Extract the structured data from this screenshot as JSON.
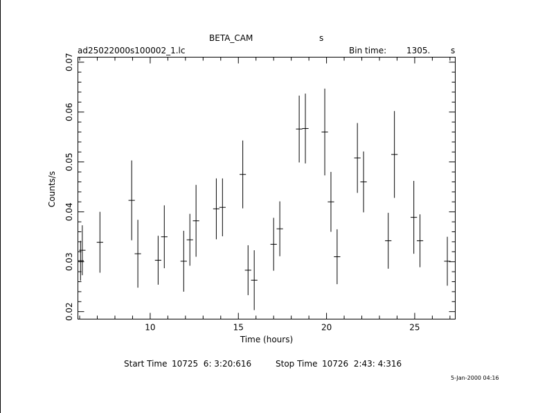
{
  "header": {
    "instrument": "BETA_CAM",
    "instrument_unit": "s",
    "filename": "ad25022000s100002_1.lc",
    "bin_time_label": "Bin time:",
    "bin_time_value": "1305.",
    "bin_time_unit": "s"
  },
  "footer": {
    "start_label": "Start Time",
    "start_value": "10725  6: 3:20:616",
    "stop_label": "Stop Time",
    "stop_value": "10726  2:43: 4:316",
    "date_stamp": "5-Jan-2000 04:16"
  },
  "chart_data": {
    "type": "scatter",
    "xlabel": "Time (hours)",
    "ylabel": "Counts/s",
    "xlim": [
      5.9,
      27.3
    ],
    "ylim": [
      0.0185,
      0.071
    ],
    "xticks": [
      10,
      15,
      20,
      25
    ],
    "yticks": [
      0.02,
      0.03,
      0.04,
      0.05,
      0.06,
      0.07
    ],
    "xtick_labels": [
      "10",
      "15",
      "20",
      "25"
    ],
    "ytick_labels": [
      "0.02",
      "0.03",
      "0.04",
      "0.05",
      "0.06",
      "0.07"
    ],
    "x_error": 0.181,
    "points": [
      {
        "x": 6.05,
        "y": 0.0302,
        "err": 0.004
      },
      {
        "x": 6.15,
        "y": 0.0323,
        "err": 0.005
      },
      {
        "x": 7.15,
        "y": 0.0339,
        "err": 0.0061
      },
      {
        "x": 8.95,
        "y": 0.0423,
        "err": 0.008
      },
      {
        "x": 9.3,
        "y": 0.0316,
        "err": 0.0068
      },
      {
        "x": 10.45,
        "y": 0.0303,
        "err": 0.0049
      },
      {
        "x": 10.8,
        "y": 0.035,
        "err": 0.0063
      },
      {
        "x": 11.9,
        "y": 0.0301,
        "err": 0.0061
      },
      {
        "x": 12.25,
        "y": 0.0344,
        "err": 0.0052
      },
      {
        "x": 12.6,
        "y": 0.0382,
        "err": 0.0072
      },
      {
        "x": 13.75,
        "y": 0.0406,
        "err": 0.0061
      },
      {
        "x": 14.1,
        "y": 0.0409,
        "err": 0.0058
      },
      {
        "x": 15.25,
        "y": 0.0475,
        "err": 0.0068
      },
      {
        "x": 15.55,
        "y": 0.0283,
        "err": 0.005
      },
      {
        "x": 15.9,
        "y": 0.0263,
        "err": 0.006
      },
      {
        "x": 17.0,
        "y": 0.0335,
        "err": 0.0053
      },
      {
        "x": 17.35,
        "y": 0.0366,
        "err": 0.0055
      },
      {
        "x": 18.45,
        "y": 0.0566,
        "err": 0.0067
      },
      {
        "x": 18.8,
        "y": 0.0567,
        "err": 0.007
      },
      {
        "x": 19.9,
        "y": 0.056,
        "err": 0.0087
      },
      {
        "x": 20.25,
        "y": 0.042,
        "err": 0.006
      },
      {
        "x": 20.6,
        "y": 0.031,
        "err": 0.0055
      },
      {
        "x": 21.75,
        "y": 0.0508,
        "err": 0.007
      },
      {
        "x": 22.1,
        "y": 0.046,
        "err": 0.0061
      },
      {
        "x": 23.5,
        "y": 0.0342,
        "err": 0.0056
      },
      {
        "x": 23.85,
        "y": 0.0515,
        "err": 0.0087
      },
      {
        "x": 24.95,
        "y": 0.0389,
        "err": 0.0073
      },
      {
        "x": 25.3,
        "y": 0.0342,
        "err": 0.0053
      },
      {
        "x": 26.85,
        "y": 0.0301,
        "err": 0.0049
      }
    ]
  }
}
